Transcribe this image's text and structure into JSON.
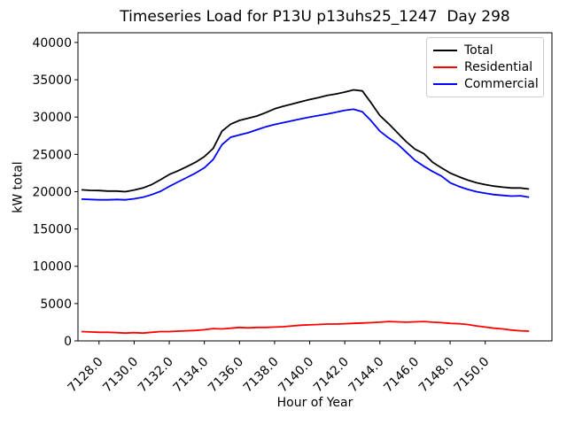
{
  "chart_data": {
    "type": "line",
    "title": "Timeseries Load for P13U p13uhs25_1247  Day 298",
    "xlabel": "Hour of Year",
    "ylabel": "kW total",
    "xlim": [
      7126.8,
      7153.8
    ],
    "ylim": [
      0,
      41300
    ],
    "grid": false,
    "legend_position": "upper right",
    "axes_background": "#ffffff",
    "frame_color": "#000000",
    "xticks": {
      "values": [
        7128,
        7130,
        7132,
        7134,
        7136,
        7138,
        7140,
        7142,
        7144,
        7146,
        7148,
        7150
      ],
      "labels": [
        "7128.0",
        "7130.0",
        "7132.0",
        "7134.0",
        "7136.0",
        "7138.0",
        "7140.0",
        "7142.0",
        "7144.0",
        "7146.0",
        "7148.0",
        "7150.0"
      ],
      "rotation": 45
    },
    "yticks": {
      "values": [
        0,
        5000,
        10000,
        15000,
        20000,
        25000,
        30000,
        35000,
        40000
      ],
      "labels": [
        "0",
        "5000",
        "10000",
        "15000",
        "20000",
        "25000",
        "30000",
        "35000",
        "40000"
      ]
    },
    "x": [
      7127.0,
      7127.5,
      7128.0,
      7128.5,
      7129.0,
      7129.5,
      7130.0,
      7130.5,
      7131.0,
      7131.5,
      7132.0,
      7132.5,
      7133.0,
      7133.5,
      7134.0,
      7134.5,
      7135.0,
      7135.5,
      7136.0,
      7136.5,
      7137.0,
      7137.5,
      7138.0,
      7138.5,
      7139.0,
      7139.5,
      7140.0,
      7140.5,
      7141.0,
      7141.5,
      7142.0,
      7142.5,
      7143.0,
      7143.5,
      7144.0,
      7144.5,
      7145.0,
      7145.5,
      7146.0,
      7146.5,
      7147.0,
      7147.5,
      7148.0,
      7148.5,
      7149.0,
      7149.5,
      7150.0,
      7150.5,
      7151.0,
      7151.5,
      7152.0,
      7152.5
    ],
    "series": [
      {
        "name": "Total",
        "color": "#000000",
        "values": [
          20250,
          20180,
          20150,
          20080,
          20080,
          20000,
          20220,
          20500,
          20950,
          21600,
          22300,
          22800,
          23350,
          23950,
          24700,
          25800,
          28100,
          29050,
          29550,
          29850,
          30150,
          30600,
          31100,
          31450,
          31750,
          32050,
          32350,
          32600,
          32900,
          33100,
          33350,
          33650,
          33500,
          31900,
          30200,
          29100,
          27900,
          26700,
          25700,
          25100,
          23950,
          23200,
          22500,
          22000,
          21550,
          21200,
          20950,
          20750,
          20600,
          20500,
          20500,
          20350
        ]
      },
      {
        "name": "Residential",
        "color": "#ff0000",
        "values": [
          1250,
          1200,
          1150,
          1150,
          1100,
          1050,
          1100,
          1050,
          1150,
          1250,
          1250,
          1300,
          1350,
          1400,
          1500,
          1650,
          1600,
          1700,
          1800,
          1750,
          1800,
          1800,
          1850,
          1900,
          2000,
          2100,
          2150,
          2200,
          2250,
          2250,
          2300,
          2350,
          2400,
          2450,
          2500,
          2600,
          2550,
          2500,
          2550,
          2600,
          2500,
          2450,
          2350,
          2300,
          2200,
          2000,
          1850,
          1700,
          1600,
          1450,
          1350,
          1300
        ]
      },
      {
        "name": "Commercial",
        "color": "#0000ff",
        "values": [
          19000,
          18950,
          18900,
          18900,
          18950,
          18900,
          19050,
          19250,
          19600,
          20050,
          20700,
          21300,
          21900,
          22500,
          23200,
          24300,
          26300,
          27300,
          27600,
          27900,
          28300,
          28700,
          29000,
          29250,
          29500,
          29750,
          30000,
          30200,
          30400,
          30650,
          30900,
          31050,
          30700,
          29500,
          28100,
          27200,
          26400,
          25300,
          24200,
          23400,
          22700,
          22100,
          21200,
          20700,
          20300,
          20000,
          19800,
          19600,
          19500,
          19400,
          19450,
          19250
        ]
      }
    ]
  }
}
